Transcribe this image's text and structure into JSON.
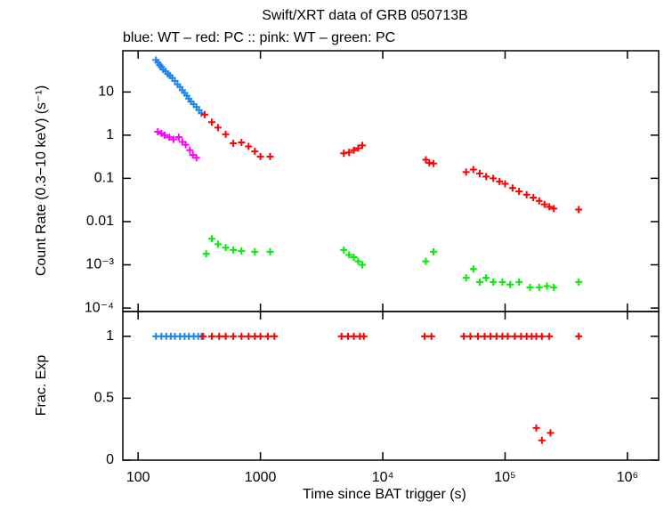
{
  "chart_data": [
    {
      "type": "scatter",
      "title": "Swift/XRT data of GRB 050713B",
      "subtitle": "blue: WT  – red: PC  :: pink: WT  – green: PC",
      "ylabel": "Count Rate (0.3−10 keV) (s⁻¹)",
      "xlog": true,
      "ylog": true,
      "xlim": [
        75,
        1800000
      ],
      "ylim": [
        8.3e-05,
        90
      ],
      "yticks": [
        10,
        1,
        0.1,
        0.01,
        {
          "value": 0.001,
          "label": "10⁻³"
        },
        {
          "value": 0.0001,
          "label": "10⁻⁴"
        }
      ],
      "series": [
        {
          "color": "#1c86ee",
          "x": [
            140,
            145,
            150,
            155,
            160,
            168,
            175,
            182,
            190,
            200,
            210,
            220,
            230,
            240,
            250,
            260,
            270,
            285,
            300,
            315,
            330
          ],
          "values": [
            55,
            48,
            42,
            38,
            33,
            30,
            26,
            24,
            21,
            18,
            15,
            13,
            11,
            9.5,
            8.2,
            7,
            6,
            5.2,
            4.5,
            3.8,
            3.2
          ]
        },
        {
          "color": "#ff00ff",
          "x": [
            145,
            155,
            165,
            180,
            195,
            215,
            230,
            245,
            265,
            280,
            300
          ],
          "values": [
            1.2,
            1.1,
            1.0,
            0.9,
            0.8,
            0.9,
            0.7,
            0.6,
            0.45,
            0.35,
            0.3
          ]
        },
        {
          "color": "#ff0000",
          "x": [
            350,
            400,
            450,
            520,
            600,
            700,
            800,
            900,
            1000,
            1200,
            4800,
            5300,
            5800,
            6300,
            6800,
            22500,
            24000,
            26000,
            48000,
            55000,
            62000,
            70000,
            80000,
            90000,
            100000,
            115000,
            130000,
            150000,
            170000,
            190000,
            210000,
            230000,
            250000,
            400000
          ],
          "values": [
            3,
            2,
            1.5,
            1.05,
            0.65,
            0.68,
            0.55,
            0.42,
            0.32,
            0.32,
            0.38,
            0.4,
            0.45,
            0.5,
            0.58,
            0.27,
            0.23,
            0.22,
            0.14,
            0.16,
            0.13,
            0.11,
            0.1,
            0.085,
            0.075,
            0.06,
            0.05,
            0.042,
            0.036,
            0.03,
            0.025,
            0.022,
            0.02,
            0.019
          ]
        },
        {
          "color": "#00ee00",
          "x": [
            360,
            400,
            450,
            520,
            600,
            700,
            900,
            1200,
            4800,
            5300,
            5800,
            6300,
            6800,
            22500,
            26000,
            48000,
            55000,
            62000,
            70000,
            80000,
            95000,
            110000,
            130000,
            160000,
            190000,
            220000,
            250000,
            400000
          ],
          "values": [
            0.0018,
            0.004,
            0.003,
            0.0025,
            0.0022,
            0.0021,
            0.002,
            0.002,
            0.0022,
            0.0017,
            0.0015,
            0.0012,
            0.001,
            0.0012,
            0.002,
            0.0005,
            0.0008,
            0.0004,
            0.0005,
            0.0004,
            0.0004,
            0.00035,
            0.0004,
            0.0003,
            0.0003,
            0.00032,
            0.0003,
            0.0004
          ]
        }
      ]
    },
    {
      "type": "scatter",
      "ylabel": "Frac. Exp",
      "xlabel": "Time since BAT trigger (s)",
      "xlog": true,
      "ylog": false,
      "xlim": [
        75,
        1800000
      ],
      "ylim": [
        0,
        1.2
      ],
      "xticks": [
        100,
        1000,
        {
          "value": 10000,
          "label": "10⁴"
        },
        {
          "value": 100000,
          "label": "10⁵"
        },
        {
          "value": 1000000,
          "label": "10⁶"
        }
      ],
      "yticks": [
        0,
        0.5,
        1
      ],
      "series": [
        {
          "color": "#1c86ee",
          "x": [
            140,
            155,
            170,
            185,
            200,
            220,
            240,
            260,
            285,
            310,
            330
          ],
          "values": [
            1,
            1,
            1,
            1,
            1,
            1,
            1,
            1,
            1,
            1,
            1
          ]
        },
        {
          "color": "#ff0000",
          "x": [
            340,
            400,
            460,
            520,
            600,
            700,
            800,
            900,
            1000,
            1150,
            1300,
            4600,
            5200,
            5800,
            6500,
            7000,
            22000,
            25000,
            46000,
            52000,
            60000,
            68000,
            76000,
            85000,
            95000,
            105000,
            120000,
            135000,
            150000,
            165000,
            180000,
            200000,
            230000,
            180000,
            200000,
            235000,
            400000
          ],
          "values": [
            1,
            1,
            1,
            1,
            1,
            1,
            1,
            1,
            1,
            1,
            1,
            1,
            1,
            1,
            1,
            1,
            1,
            1,
            1,
            1,
            1,
            1,
            1,
            1,
            1,
            1,
            1,
            1,
            1,
            1,
            1,
            1,
            1,
            0.26,
            0.16,
            0.22,
            1
          ]
        }
      ]
    }
  ]
}
